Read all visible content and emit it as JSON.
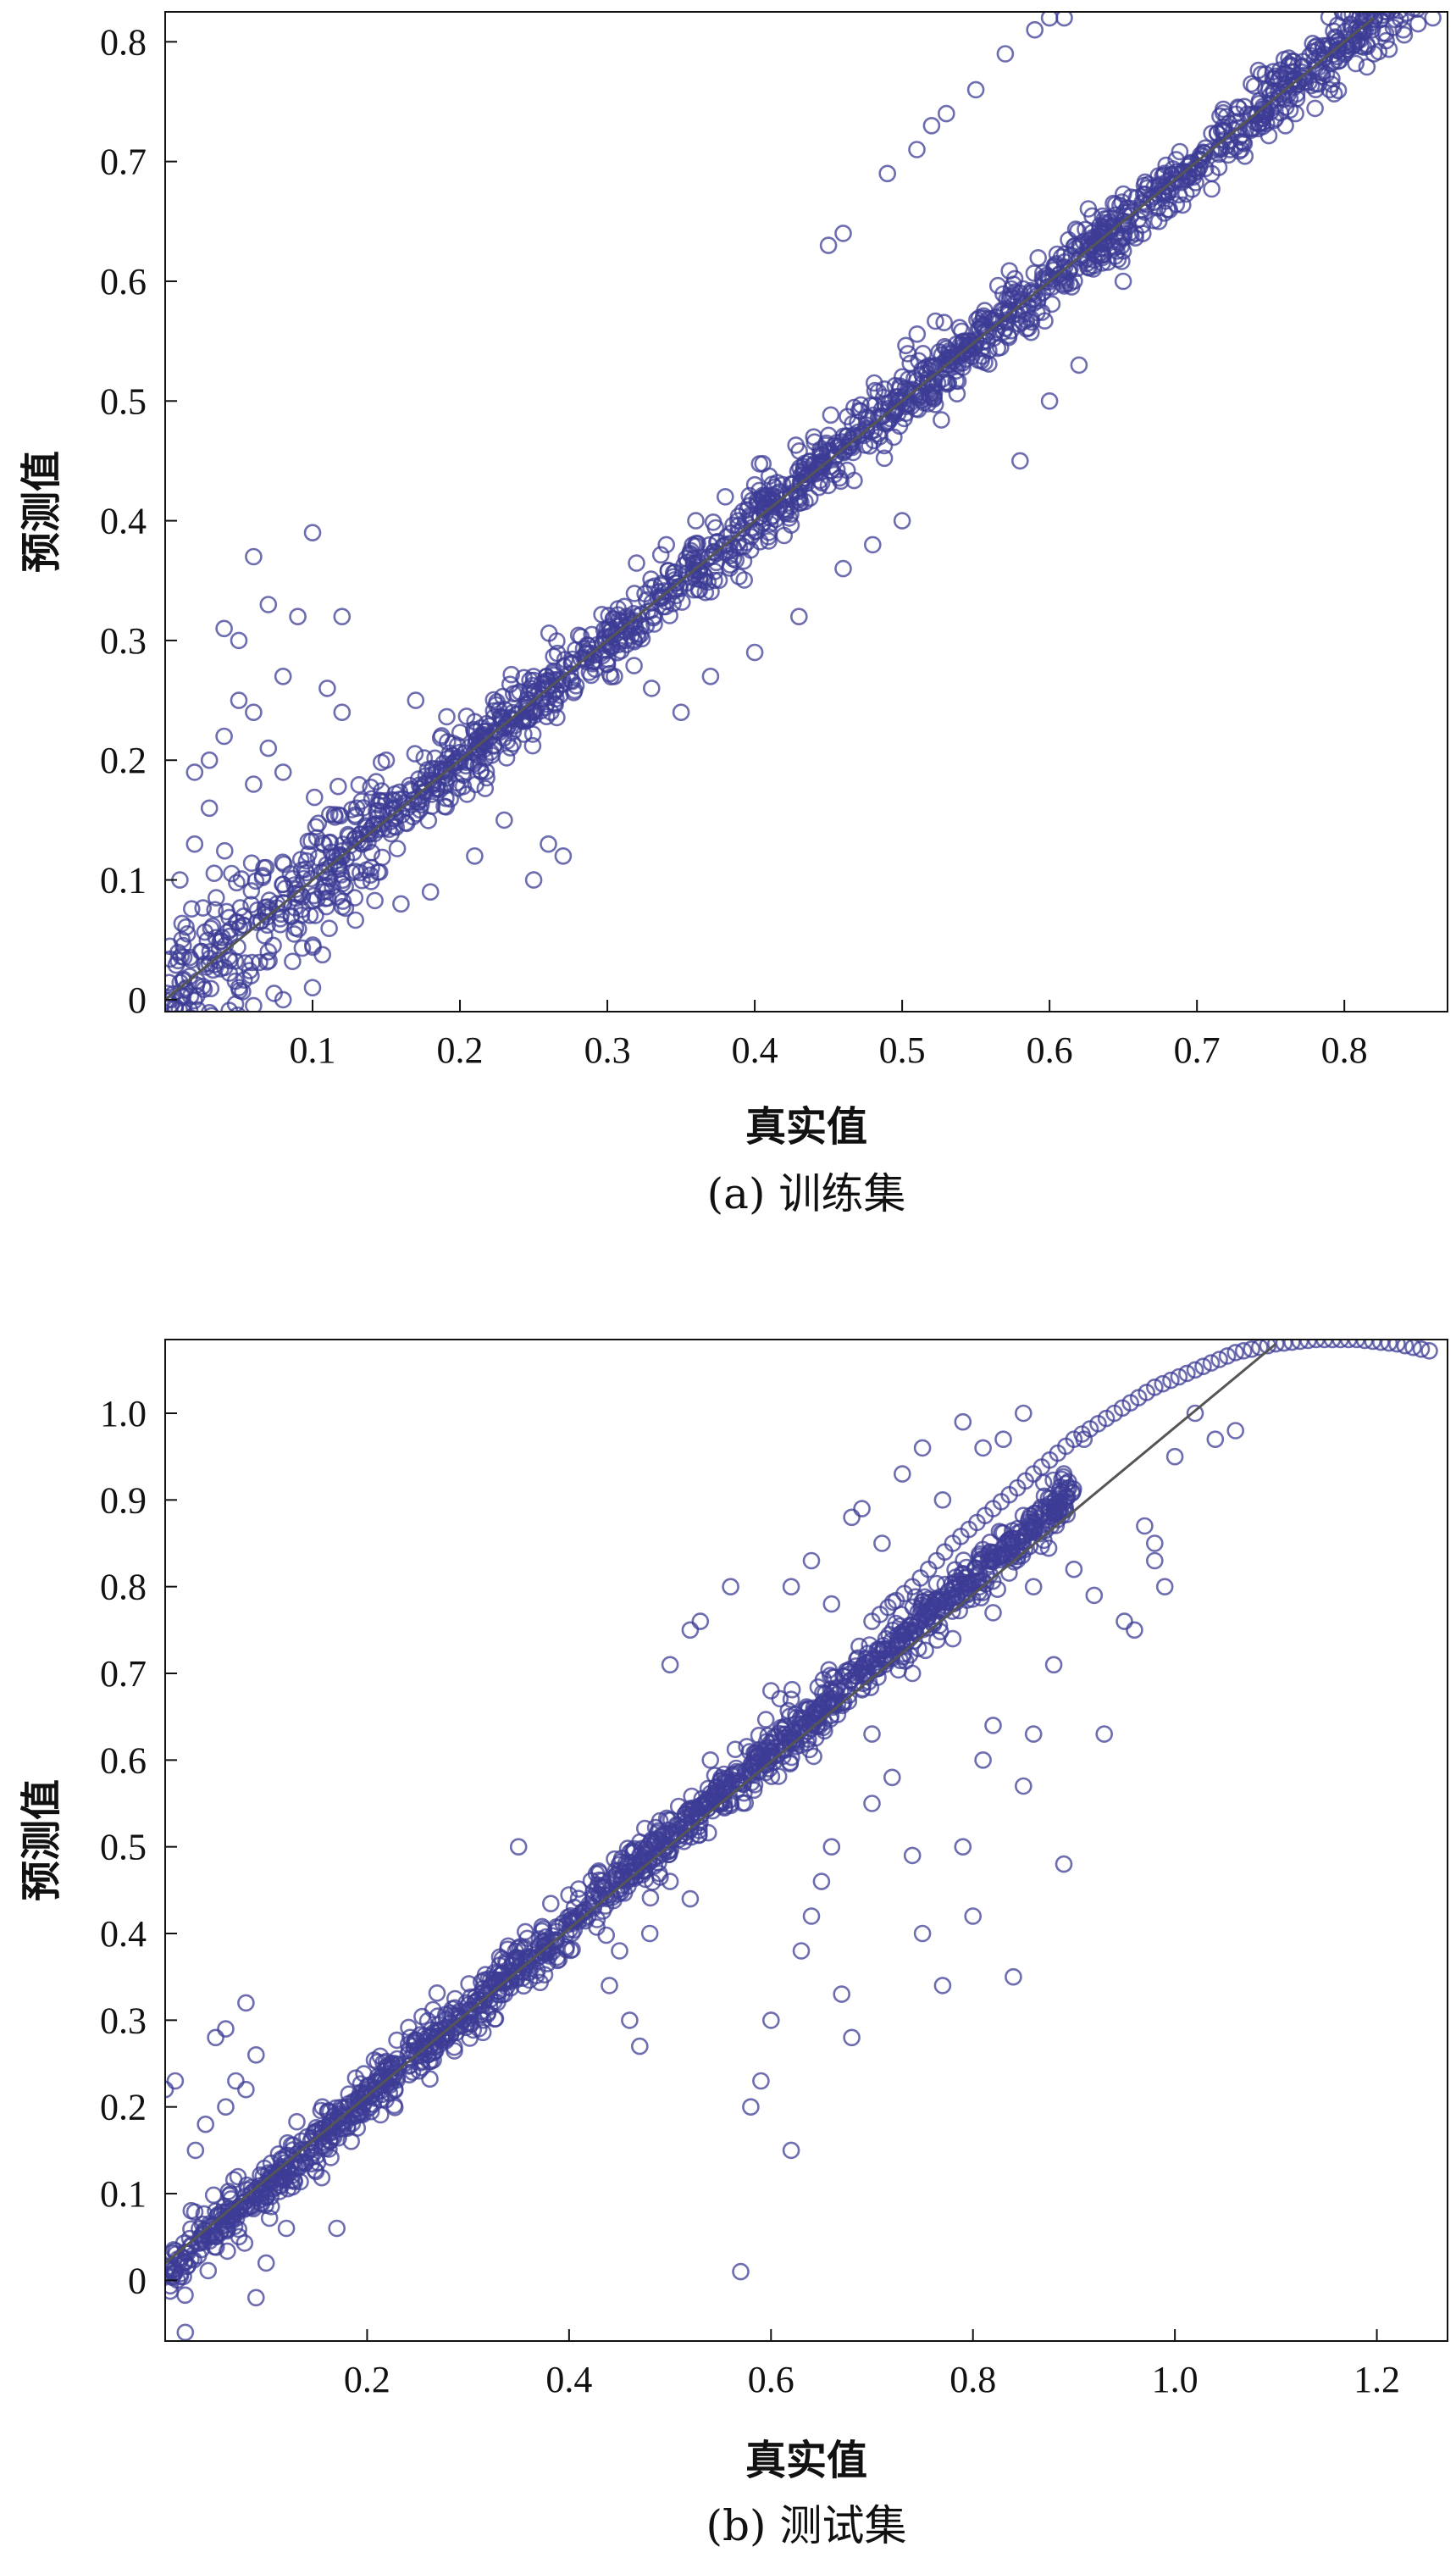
{
  "chart_data": [
    {
      "type": "scatter",
      "caption": "(a) 训练集",
      "xlabel": "真实值",
      "ylabel": "预测值",
      "xlim": [
        0.0,
        0.87
      ],
      "ylim": [
        -0.01,
        0.825
      ],
      "x_ticks": [
        0.1,
        0.2,
        0.3,
        0.4,
        0.5,
        0.6,
        0.7,
        0.8
      ],
      "x_tick_labels": [
        "0.1",
        "0.2",
        "0.3",
        "0.4",
        "0.5",
        "0.6",
        "0.7",
        "0.8"
      ],
      "y_ticks": [
        0,
        0.1,
        0.2,
        0.3,
        0.4,
        0.5,
        0.6,
        0.7,
        0.8
      ],
      "y_tick_labels": [
        "0",
        "0.1",
        "0.2",
        "0.3",
        "0.4",
        "0.5",
        "0.6",
        "0.7",
        "0.8"
      ],
      "reference_line": {
        "x": [
          0.0,
          0.82
        ],
        "y": [
          0.0,
          0.82
        ]
      },
      "marker_color": "#3c3c96",
      "line_color": "#555555",
      "points": [
        [
          0.06,
          0.37
        ],
        [
          0.1,
          0.39
        ],
        [
          0.07,
          0.33
        ],
        [
          0.09,
          0.32
        ],
        [
          0.12,
          0.32
        ],
        [
          0.04,
          0.31
        ],
        [
          0.05,
          0.3
        ],
        [
          0.03,
          0.2
        ],
        [
          0.05,
          0.25
        ],
        [
          0.06,
          0.24
        ],
        [
          0.08,
          0.27
        ],
        [
          0.11,
          0.26
        ],
        [
          0.12,
          0.24
        ],
        [
          0.02,
          0.19
        ],
        [
          0.04,
          0.22
        ],
        [
          0.07,
          0.21
        ],
        [
          0.01,
          0.1
        ],
        [
          0.02,
          0.13
        ],
        [
          0.03,
          0.16
        ],
        [
          0.06,
          0.18
        ],
        [
          0.08,
          0.19
        ],
        [
          0.03,
          0.03
        ],
        [
          0.05,
          0.01
        ],
        [
          0.06,
          -0.005
        ],
        [
          0.08,
          0.0
        ],
        [
          0.1,
          0.01
        ],
        [
          0.07,
          0.04
        ],
        [
          0.13,
          0.16
        ],
        [
          0.15,
          0.2
        ],
        [
          0.16,
          0.08
        ],
        [
          0.18,
          0.09
        ],
        [
          0.17,
          0.25
        ],
        [
          0.21,
          0.12
        ],
        [
          0.23,
          0.15
        ],
        [
          0.26,
          0.13
        ],
        [
          0.27,
          0.12
        ],
        [
          0.25,
          0.1
        ],
        [
          0.34,
          0.38
        ],
        [
          0.36,
          0.4
        ],
        [
          0.38,
          0.42
        ],
        [
          0.4,
          0.43
        ],
        [
          0.3,
          0.28
        ],
        [
          0.33,
          0.26
        ],
        [
          0.35,
          0.24
        ],
        [
          0.37,
          0.27
        ],
        [
          0.4,
          0.29
        ],
        [
          0.43,
          0.32
        ],
        [
          0.46,
          0.36
        ],
        [
          0.48,
          0.38
        ],
        [
          0.5,
          0.4
        ],
        [
          0.44,
          0.47
        ],
        [
          0.45,
          0.63
        ],
        [
          0.46,
          0.64
        ],
        [
          0.49,
          0.69
        ],
        [
          0.51,
          0.71
        ],
        [
          0.52,
          0.73
        ],
        [
          0.53,
          0.74
        ],
        [
          0.55,
          0.76
        ],
        [
          0.57,
          0.79
        ],
        [
          0.59,
          0.81
        ],
        [
          0.6,
          0.82
        ],
        [
          0.61,
          0.82
        ],
        [
          0.58,
          0.45
        ],
        [
          0.6,
          0.5
        ],
        [
          0.62,
          0.53
        ],
        [
          0.65,
          0.6
        ],
        [
          0.68,
          0.66
        ],
        [
          0.71,
          0.69
        ],
        [
          0.73,
          0.71
        ],
        [
          0.76,
          0.73
        ],
        [
          0.79,
          0.76
        ],
        [
          0.82,
          0.79
        ],
        [
          0.84,
          0.81
        ],
        [
          0.86,
          0.82
        ],
        [
          0.85,
          0.815
        ]
      ],
      "band_points": 1800,
      "band_x_range": [
        0.0,
        0.865
      ],
      "band_noise": 0.018
    },
    {
      "type": "scatter",
      "caption": "(b) 测试集",
      "xlabel": "真实值",
      "ylabel": "预测值",
      "xlim": [
        0.0,
        1.27
      ],
      "ylim": [
        -0.07,
        1.085
      ],
      "x_ticks": [
        0.2,
        0.4,
        0.6,
        0.8,
        1.0,
        1.2
      ],
      "x_tick_labels": [
        "0.2",
        "0.4",
        "0.6",
        "0.8",
        "1.0",
        "1.2"
      ],
      "y_ticks": [
        0,
        0.1,
        0.2,
        0.3,
        0.4,
        0.5,
        0.6,
        0.7,
        0.8,
        0.9,
        1.0
      ],
      "y_tick_labels": [
        "0",
        "0.1",
        "0.2",
        "0.3",
        "0.4",
        "0.5",
        "0.6",
        "0.7",
        "0.8",
        "0.9",
        "1.0"
      ],
      "reference_line": {
        "x": [
          0.0,
          1.1
        ],
        "y": [
          0.02,
          1.08
        ]
      },
      "marker_color": "#3c3c96",
      "line_color": "#555555",
      "points": [
        [
          0.0,
          0.22
        ],
        [
          0.01,
          0.23
        ],
        [
          0.02,
          -0.06
        ],
        [
          0.05,
          0.28
        ],
        [
          0.06,
          0.29
        ],
        [
          0.08,
          0.32
        ],
        [
          0.07,
          0.23
        ],
        [
          0.09,
          0.26
        ],
        [
          0.03,
          0.15
        ],
        [
          0.04,
          0.18
        ],
        [
          0.06,
          0.2
        ],
        [
          0.08,
          0.22
        ],
        [
          0.1,
          0.02
        ],
        [
          0.09,
          -0.02
        ],
        [
          0.12,
          0.06
        ],
        [
          0.17,
          0.06
        ],
        [
          0.35,
          0.5
        ],
        [
          0.39,
          0.37
        ],
        [
          0.41,
          0.42
        ],
        [
          0.43,
          0.47
        ],
        [
          0.44,
          0.34
        ],
        [
          0.46,
          0.3
        ],
        [
          0.47,
          0.27
        ],
        [
          0.49,
          0.53
        ],
        [
          0.5,
          0.71
        ],
        [
          0.52,
          0.75
        ],
        [
          0.53,
          0.76
        ],
        [
          0.56,
          0.8
        ],
        [
          0.57,
          0.01
        ],
        [
          0.58,
          0.2
        ],
        [
          0.59,
          0.23
        ],
        [
          0.6,
          0.3
        ],
        [
          0.62,
          0.15
        ],
        [
          0.63,
          0.38
        ],
        [
          0.64,
          0.42
        ],
        [
          0.65,
          0.46
        ],
        [
          0.66,
          0.5
        ],
        [
          0.67,
          0.33
        ],
        [
          0.68,
          0.28
        ],
        [
          0.7,
          0.55
        ],
        [
          0.72,
          0.58
        ],
        [
          0.74,
          0.49
        ],
        [
          0.75,
          0.4
        ],
        [
          0.77,
          0.34
        ],
        [
          0.79,
          0.5
        ],
        [
          0.8,
          0.42
        ],
        [
          0.81,
          0.6
        ],
        [
          0.82,
          0.64
        ],
        [
          0.84,
          0.35
        ],
        [
          0.85,
          0.57
        ],
        [
          0.86,
          0.63
        ],
        [
          0.88,
          0.71
        ],
        [
          0.89,
          0.48
        ],
        [
          0.92,
          0.79
        ],
        [
          0.93,
          0.63
        ],
        [
          0.95,
          0.76
        ],
        [
          0.96,
          0.75
        ],
        [
          0.98,
          0.85
        ],
        [
          1.0,
          0.95
        ],
        [
          1.02,
          1.0
        ],
        [
          1.04,
          0.97
        ],
        [
          1.06,
          0.98
        ],
        [
          0.62,
          0.8
        ],
        [
          0.64,
          0.83
        ],
        [
          0.66,
          0.78
        ],
        [
          0.68,
          0.88
        ],
        [
          0.69,
          0.89
        ],
        [
          0.71,
          0.85
        ],
        [
          0.73,
          0.93
        ],
        [
          0.75,
          0.96
        ],
        [
          0.77,
          0.9
        ],
        [
          0.79,
          0.99
        ],
        [
          0.81,
          0.96
        ],
        [
          0.83,
          0.97
        ],
        [
          0.85,
          1.0
        ],
        [
          0.87,
          0.92
        ],
        [
          0.89,
          0.93
        ],
        [
          0.91,
          0.97
        ],
        [
          0.97,
          0.87
        ],
        [
          0.98,
          0.83
        ],
        [
          0.99,
          0.8
        ],
        [
          0.7,
          0.63
        ],
        [
          0.74,
          0.7
        ],
        [
          0.78,
          0.74
        ],
        [
          0.82,
          0.77
        ],
        [
          0.86,
          0.8
        ],
        [
          0.9,
          0.82
        ],
        [
          0.6,
          0.68
        ],
        [
          0.62,
          0.67
        ],
        [
          0.56,
          0.55
        ],
        [
          0.54,
          0.6
        ],
        [
          0.5,
          0.46
        ],
        [
          0.52,
          0.44
        ],
        [
          0.48,
          0.4
        ],
        [
          0.45,
          0.38
        ]
      ],
      "top_arc": [
        [
          0.7,
          0.76
        ],
        [
          0.74,
          0.8
        ],
        [
          0.78,
          0.85
        ],
        [
          0.82,
          0.89
        ],
        [
          0.86,
          0.93
        ],
        [
          0.9,
          0.97
        ],
        [
          0.94,
          1.0
        ],
        [
          0.98,
          1.03
        ],
        [
          1.02,
          1.05
        ],
        [
          1.06,
          1.07
        ],
        [
          1.1,
          1.08
        ],
        [
          1.14,
          1.085
        ],
        [
          1.18,
          1.085
        ],
        [
          1.22,
          1.08
        ],
        [
          1.26,
          1.07
        ]
      ],
      "band_points": 1500,
      "band_x_range": [
        0.0,
        0.9
      ],
      "band_noise": 0.02
    }
  ]
}
